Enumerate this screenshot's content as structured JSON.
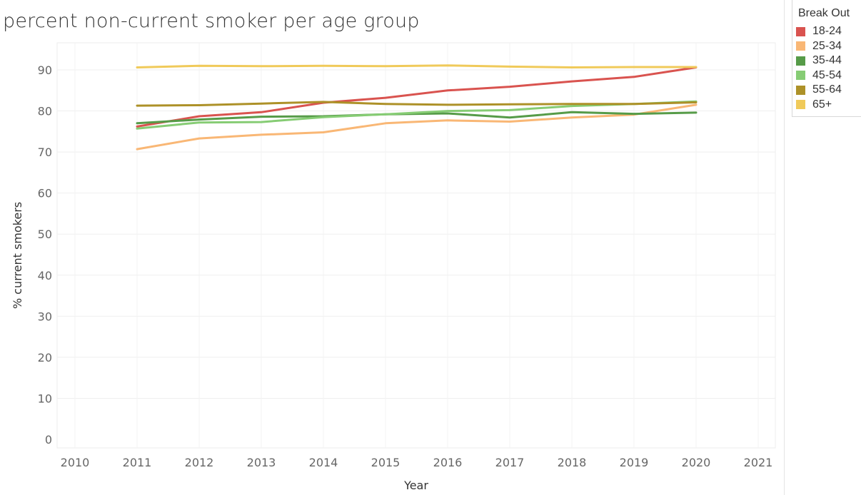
{
  "chart_data": {
    "type": "line",
    "title": "percent non-current smoker per age group",
    "xlabel": "Year",
    "ylabel": "% current smokers",
    "xlim": [
      2010,
      2021
    ],
    "ylim": [
      0,
      95
    ],
    "x_ticks": [
      "2010",
      "2011",
      "2012",
      "2013",
      "2014",
      "2015",
      "2016",
      "2017",
      "2018",
      "2019",
      "2020",
      "2021"
    ],
    "y_ticks": [
      "0",
      "10",
      "20",
      "30",
      "40",
      "50",
      "60",
      "70",
      "80",
      "90"
    ],
    "grid": true,
    "legend_title": "Break Out",
    "legend_position": "right",
    "x": [
      2011,
      2012,
      2013,
      2014,
      2015,
      2016,
      2017,
      2018,
      2019,
      2020
    ],
    "series": [
      {
        "name": "18-24",
        "color": "#d9534f",
        "values": [
          76.2,
          78.7,
          79.7,
          82.0,
          83.2,
          85.0,
          85.9,
          87.2,
          88.3,
          90.6
        ]
      },
      {
        "name": "25-34",
        "color": "#f9b775",
        "values": [
          70.7,
          73.3,
          74.2,
          74.8,
          77.0,
          77.7,
          77.4,
          78.4,
          79.1,
          81.5
        ]
      },
      {
        "name": "35-44",
        "color": "#569b48",
        "values": [
          77.0,
          77.9,
          78.6,
          78.7,
          79.2,
          79.4,
          78.4,
          79.7,
          79.3,
          79.6
        ]
      },
      {
        "name": "45-54",
        "color": "#86cc74",
        "values": [
          75.7,
          77.2,
          77.3,
          78.5,
          79.2,
          80.0,
          80.2,
          81.2,
          81.7,
          82.3
        ]
      },
      {
        "name": "55-64",
        "color": "#ad9128",
        "values": [
          81.3,
          81.4,
          81.8,
          82.2,
          81.7,
          81.5,
          81.6,
          81.7,
          81.7,
          82.1
        ]
      },
      {
        "name": "65+",
        "color": "#f0ca5a",
        "values": [
          90.6,
          91.0,
          90.9,
          91.0,
          90.9,
          91.1,
          90.8,
          90.6,
          90.7,
          90.7
        ]
      }
    ]
  }
}
